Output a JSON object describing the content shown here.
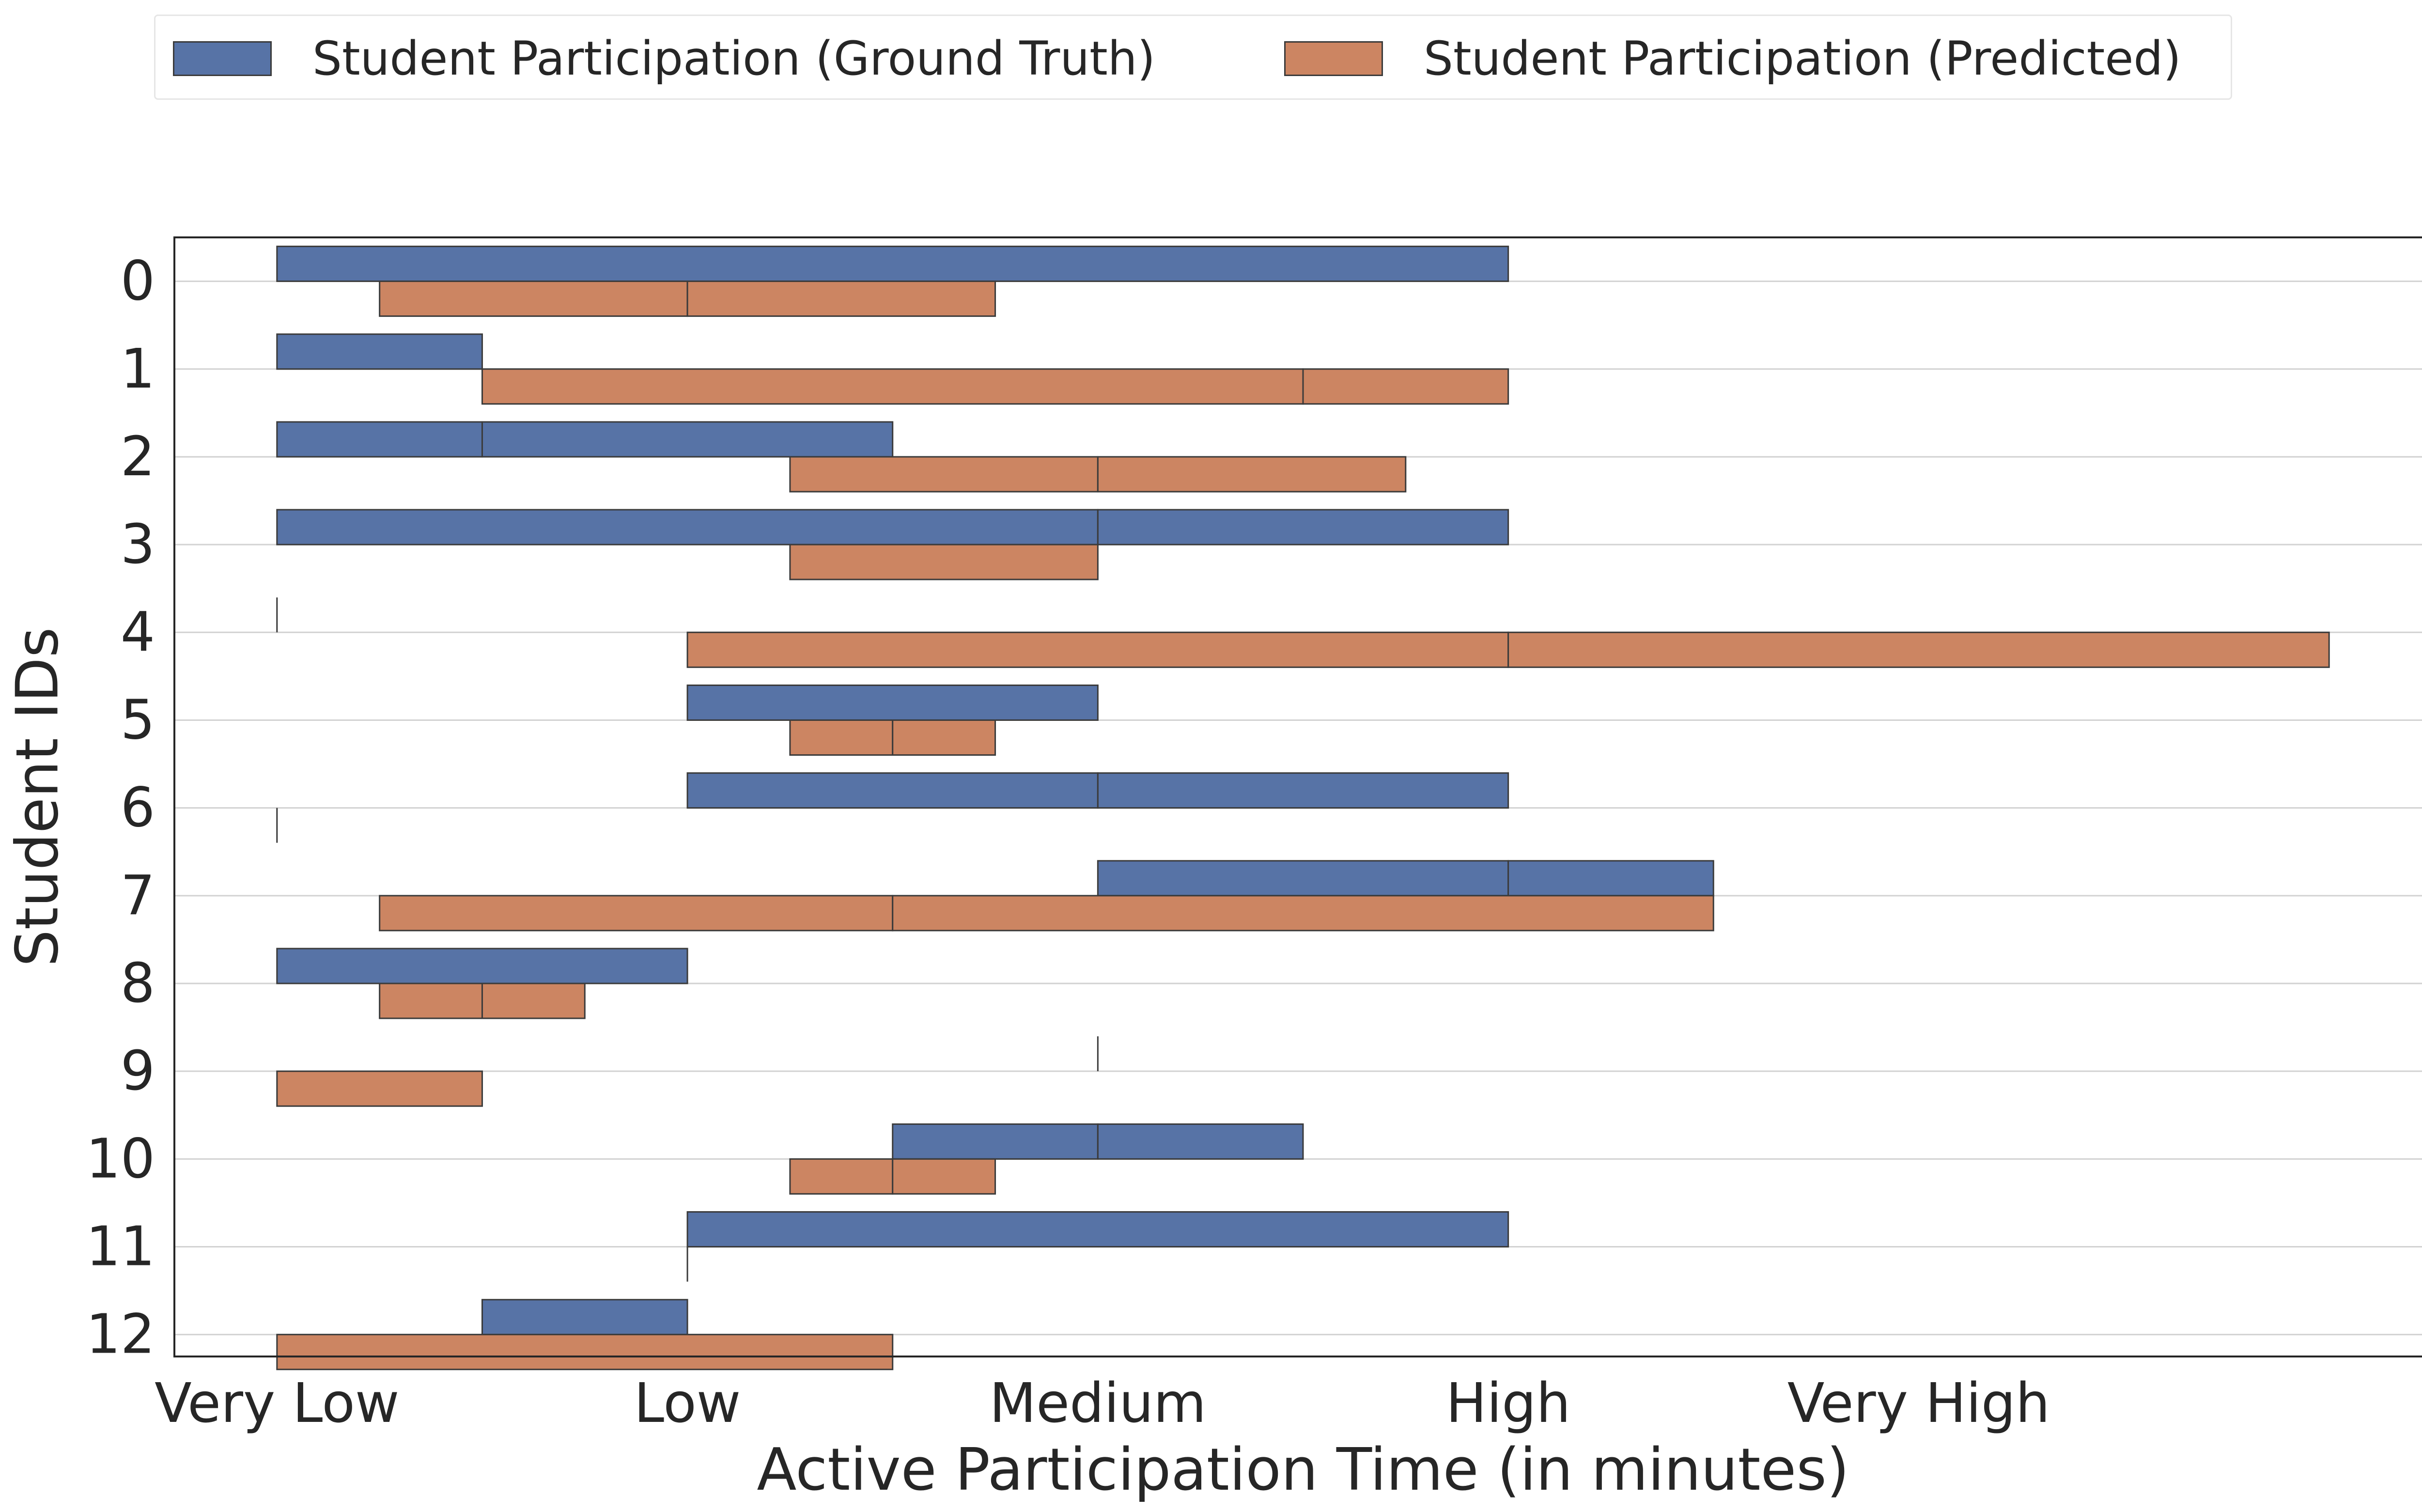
{
  "chart_data": {
    "type": "bar",
    "orientation": "horizontal",
    "layout": "stacked segments per student (floating ranges)",
    "xlabel": "Active Participation Time (in minutes)",
    "ylabel": "Student IDs",
    "x_tick_labels": [
      "Very Low",
      "Low",
      "Medium",
      "High",
      "Very High"
    ],
    "x_tick_values": [
      0,
      1,
      2,
      3,
      4
    ],
    "xlim": [
      -0.25,
      5.25
    ],
    "categories": [
      "0",
      "1",
      "2",
      "3",
      "4",
      "5",
      "6",
      "7",
      "8",
      "9",
      "10",
      "11",
      "12"
    ],
    "grid": "horizontal",
    "legend_position": "top-center",
    "series": [
      {
        "name": "Student Participation (Ground Truth)",
        "color": "#5773a6",
        "segments": [
          [
            [
              0,
              3
            ]
          ],
          [
            [
              0,
              0.5
            ]
          ],
          [
            [
              0,
              0.5
            ],
            [
              0.5,
              1.5
            ]
          ],
          [
            [
              0,
              2
            ],
            [
              2,
              3
            ]
          ],
          [
            [
              0,
              0
            ]
          ],
          [
            [
              1,
              2
            ]
          ],
          [
            [
              1,
              2
            ],
            [
              2,
              3
            ]
          ],
          [
            [
              2,
              3
            ],
            [
              3,
              3.5
            ]
          ],
          [
            [
              0,
              1
            ]
          ],
          [
            [
              2,
              2
            ]
          ],
          [
            [
              1.5,
              2
            ],
            [
              2,
              2.5
            ]
          ],
          [
            [
              1,
              3
            ]
          ],
          [
            [
              0.5,
              1
            ]
          ]
        ]
      },
      {
        "name": "Student Participation (Predicted)",
        "color": "#cc8562",
        "segments": [
          [
            [
              0.25,
              1
            ],
            [
              1,
              1.75
            ]
          ],
          [
            [
              0.5,
              2.5
            ],
            [
              2.5,
              3
            ]
          ],
          [
            [
              1.25,
              2
            ],
            [
              2,
              2.75
            ]
          ],
          [
            [
              1.25,
              2
            ]
          ],
          [
            [
              1,
              3
            ],
            [
              3,
              5
            ]
          ],
          [
            [
              1.25,
              1.5
            ],
            [
              1.5,
              1.75
            ]
          ],
          [
            [
              0,
              0
            ]
          ],
          [
            [
              0.25,
              1.5
            ],
            [
              1.5,
              3.5
            ]
          ],
          [
            [
              0.25,
              0.5
            ],
            [
              0.5,
              0.75
            ]
          ],
          [
            [
              0,
              0.5
            ]
          ],
          [
            [
              1.25,
              1.5
            ],
            [
              1.5,
              1.75
            ]
          ],
          [
            [
              1,
              1
            ]
          ],
          [
            [
              0,
              1.5
            ]
          ]
        ]
      }
    ]
  }
}
